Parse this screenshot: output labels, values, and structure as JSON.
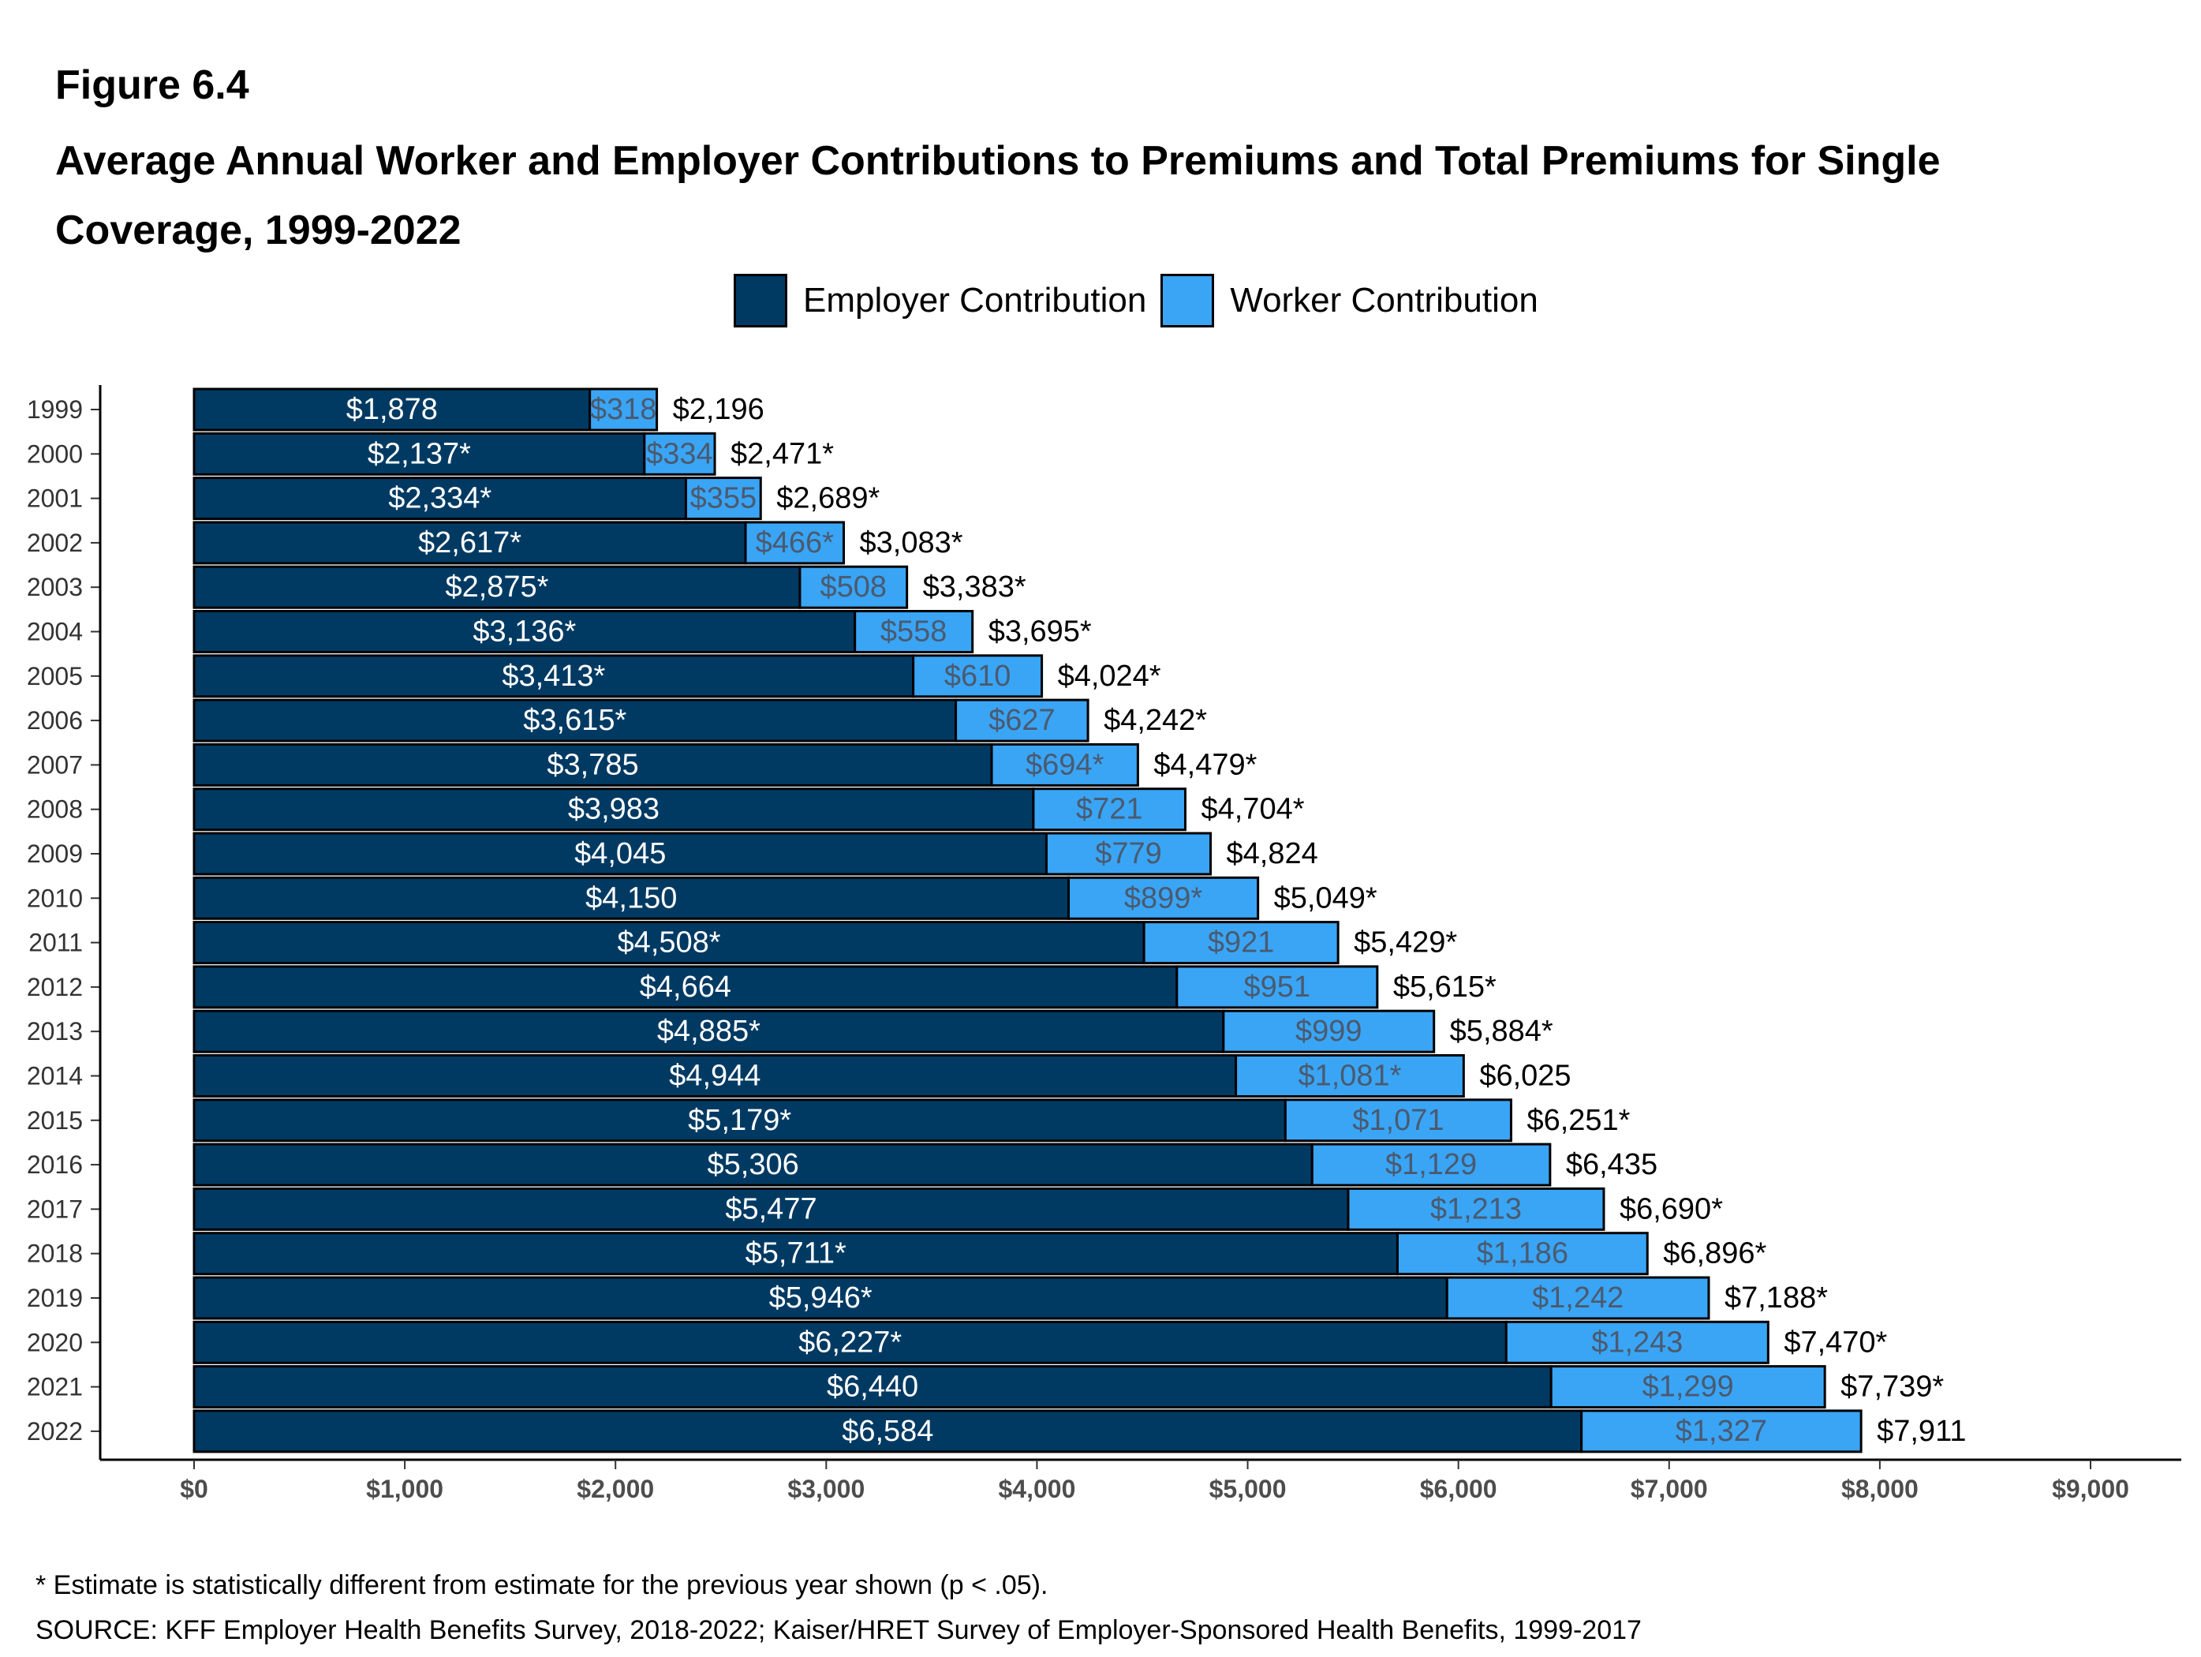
{
  "header": {
    "figure_label": "Figure 6.4",
    "title": "Average Annual Worker and Employer Contributions to Premiums and Total Premiums for Single Coverage, 1999-2022"
  },
  "legend": {
    "employer_label": "Employer Contribution",
    "worker_label": "Worker Contribution"
  },
  "colors": {
    "employer": "#003a63",
    "worker": "#3aa5f5",
    "outline": "#000000"
  },
  "footer": {
    "footnote": "* Estimate is statistically different from estimate for the previous year shown (p < .05).",
    "source": "SOURCE: KFF Employer Health Benefits Survey, 2018-2022; Kaiser/HRET Survey of Employer-Sponsored Health Benefits, 1999-2017"
  },
  "chart_data": {
    "type": "bar",
    "orientation": "horizontal",
    "stacked": true,
    "categories": [
      "1999",
      "2000",
      "2001",
      "2002",
      "2003",
      "2004",
      "2005",
      "2006",
      "2007",
      "2008",
      "2009",
      "2010",
      "2011",
      "2012",
      "2013",
      "2014",
      "2015",
      "2016",
      "2017",
      "2018",
      "2019",
      "2020",
      "2021",
      "2022"
    ],
    "series": [
      {
        "name": "Employer Contribution",
        "values": [
          1878,
          2137,
          2334,
          2617,
          2875,
          3136,
          3413,
          3615,
          3785,
          3983,
          4045,
          4150,
          4508,
          4664,
          4885,
          4944,
          5179,
          5306,
          5477,
          5711,
          5946,
          6227,
          6440,
          6584
        ],
        "labels": [
          "$1,878",
          "$2,137*",
          "$2,334*",
          "$2,617*",
          "$2,875*",
          "$3,136*",
          "$3,413*",
          "$3,615*",
          "$3,785",
          "$3,983",
          "$4,045",
          "$4,150",
          "$4,508*",
          "$4,664",
          "$4,885*",
          "$4,944",
          "$5,179*",
          "$5,306",
          "$5,477",
          "$5,711*",
          "$5,946*",
          "$6,227*",
          "$6,440",
          "$6,584"
        ]
      },
      {
        "name": "Worker Contribution",
        "values": [
          318,
          334,
          355,
          466,
          508,
          558,
          610,
          627,
          694,
          721,
          779,
          899,
          921,
          951,
          999,
          1081,
          1071,
          1129,
          1213,
          1186,
          1242,
          1243,
          1299,
          1327
        ],
        "labels": [
          "$318",
          "$334",
          "$355",
          "$466*",
          "$508",
          "$558",
          "$610",
          "$627",
          "$694*",
          "$721",
          "$779",
          "$899*",
          "$921",
          "$951",
          "$999",
          "$1,081*",
          "$1,071",
          "$1,129",
          "$1,213",
          "$1,186",
          "$1,242",
          "$1,243",
          "$1,299",
          "$1,327"
        ]
      }
    ],
    "totals": {
      "values": [
        2196,
        2471,
        2689,
        3083,
        3383,
        3695,
        4024,
        4242,
        4479,
        4704,
        4824,
        5049,
        5429,
        5615,
        5884,
        6025,
        6251,
        6435,
        6690,
        6896,
        7188,
        7470,
        7739,
        7911
      ],
      "labels": [
        "$2,196",
        "$2,471*",
        "$2,689*",
        "$3,083*",
        "$3,383*",
        "$3,695*",
        "$4,024*",
        "$4,242*",
        "$4,479*",
        "$4,704*",
        "$4,824",
        "$5,049*",
        "$5,429*",
        "$5,615*",
        "$5,884*",
        "$6,025",
        "$6,251*",
        "$6,435",
        "$6,690*",
        "$6,896*",
        "$7,188*",
        "$7,470*",
        "$7,739*",
        "$7,911"
      ]
    },
    "xlim": [
      0,
      9000
    ],
    "x_ticks": [
      0,
      1000,
      2000,
      3000,
      4000,
      5000,
      6000,
      7000,
      8000,
      9000
    ],
    "x_tick_labels": [
      "$0",
      "$1,000",
      "$2,000",
      "$3,000",
      "$4,000",
      "$5,000",
      "$6,000",
      "$7,000",
      "$8,000",
      "$9,000"
    ],
    "grid": false,
    "legend_position": "top"
  }
}
